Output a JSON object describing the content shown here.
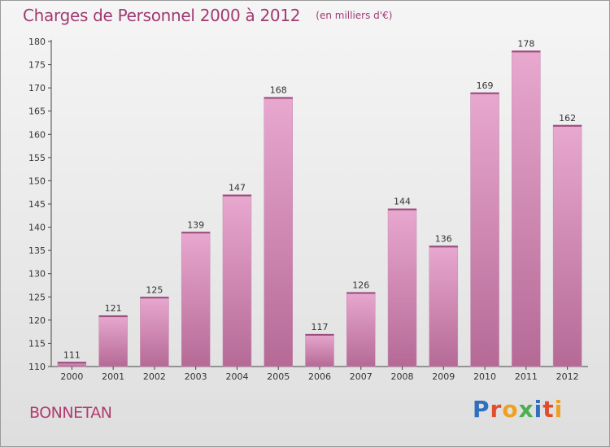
{
  "title": "Charges de Personnel 2000 à 2012",
  "subtitle": "(en milliers d'€)",
  "commune": "BONNETAN",
  "logo": {
    "text": "Proxiti",
    "letters": [
      {
        "ch": "P",
        "color": "#2f6fc0"
      },
      {
        "ch": "r",
        "color": "#e04e2e"
      },
      {
        "ch": "o",
        "color": "#f0a020"
      },
      {
        "ch": "x",
        "color": "#4caf50"
      },
      {
        "ch": "i",
        "color": "#2f6fc0"
      },
      {
        "ch": "t",
        "color": "#e04e2e"
      },
      {
        "ch": "i",
        "color": "#f0a020"
      }
    ]
  },
  "colors": {
    "bar_top": "#e8a8cf",
    "bar_bottom": "#b56a96",
    "title": "#a03a72"
  },
  "chart_data": {
    "type": "bar",
    "categories": [
      "2000",
      "2001",
      "2002",
      "2003",
      "2004",
      "2005",
      "2006",
      "2007",
      "2008",
      "2009",
      "2010",
      "2011",
      "2012"
    ],
    "values": [
      111,
      121,
      125,
      139,
      147,
      168,
      117,
      126,
      144,
      136,
      169,
      178,
      162
    ],
    "ylim": [
      110,
      180
    ],
    "yticks": [
      110,
      115,
      120,
      125,
      130,
      135,
      140,
      145,
      150,
      155,
      160,
      165,
      170,
      175,
      180
    ],
    "grid": false,
    "xlabel": "",
    "ylabel": ""
  }
}
